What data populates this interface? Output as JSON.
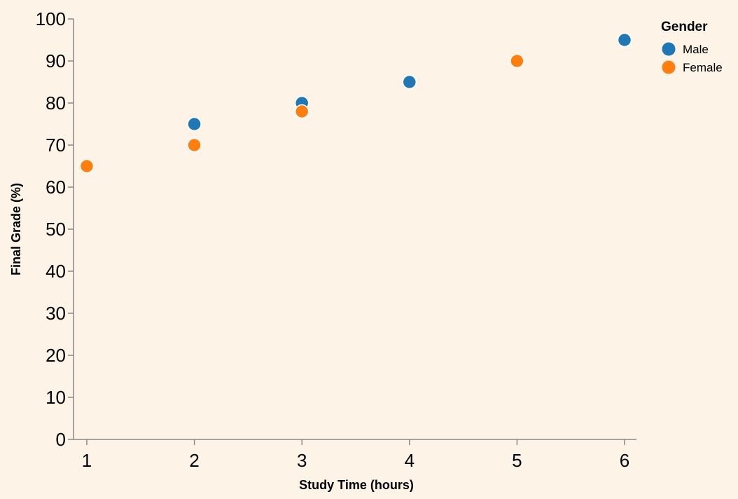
{
  "chart_data": {
    "type": "scatter",
    "title": "",
    "xlabel": "Study Time (hours)",
    "ylabel": "Final Grade (%)",
    "xlim": [
      1,
      6
    ],
    "ylim": [
      0,
      100
    ],
    "x_ticks": [
      1,
      2,
      3,
      4,
      5,
      6
    ],
    "y_ticks": [
      0,
      10,
      20,
      30,
      40,
      50,
      60,
      70,
      80,
      90,
      100
    ],
    "grid": false,
    "legend": {
      "title": "Gender",
      "placement": "top-right"
    },
    "series": [
      {
        "name": "Male",
        "color": "#1f77b4",
        "points": [
          {
            "x": 2,
            "y": 75
          },
          {
            "x": 3,
            "y": 80
          },
          {
            "x": 4,
            "y": 85
          },
          {
            "x": 6,
            "y": 95
          }
        ]
      },
      {
        "name": "Female",
        "color": "#ff7f0e",
        "points": [
          {
            "x": 1,
            "y": 65
          },
          {
            "x": 2,
            "y": 70
          },
          {
            "x": 3,
            "y": 78
          },
          {
            "x": 5,
            "y": 90
          }
        ]
      }
    ]
  }
}
